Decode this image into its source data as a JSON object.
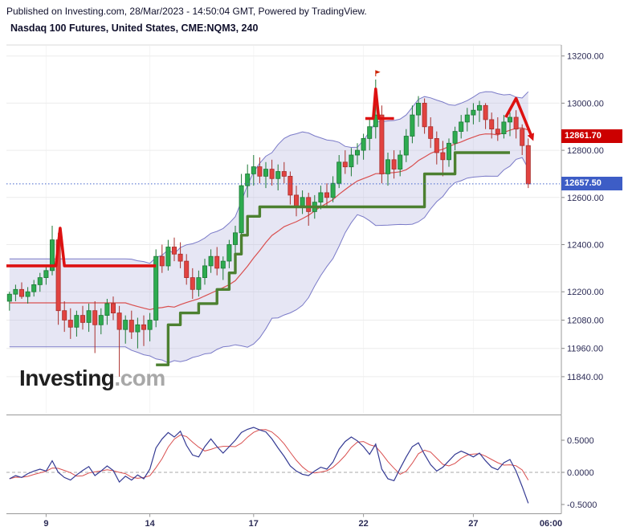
{
  "header": {
    "published_line": "Published on Investing.com, 28/Mar/2023 - 14:50:04 GMT, Powered by TradingView.",
    "title": "Nasdaq 100 Futures, United States, CME:NQM3, 240"
  },
  "watermark": {
    "brand": "Investing",
    "suffix": ".com"
  },
  "badges": {
    "indicator": {
      "label": "12861.70",
      "value": 12861.7
    },
    "current": {
      "label": "12657.50",
      "value": 12657.5
    }
  },
  "price_axis": {
    "ticks": [
      {
        "label": "13200.00",
        "value": 13200
      },
      {
        "label": "13000.00",
        "value": 13000
      },
      {
        "label": "12800.00",
        "value": 12800
      },
      {
        "label": "12600.00",
        "value": 12600
      },
      {
        "label": "12400.00",
        "value": 12400
      },
      {
        "label": "12200.00",
        "value": 12200
      },
      {
        "label": "12080.00",
        "value": 12080
      },
      {
        "label": "11960.00",
        "value": 11960
      },
      {
        "label": "11840.00",
        "value": 11840
      }
    ]
  },
  "osc_axis": {
    "ticks": [
      {
        "label": "0.5000",
        "value": 0.5
      },
      {
        "label": "0.0000",
        "value": 0.0
      },
      {
        "label": "-0.5000",
        "value": -0.5
      }
    ]
  },
  "time_axis": {
    "labels": [
      {
        "text": "9",
        "index": 6
      },
      {
        "text": "14",
        "index": 23
      },
      {
        "text": "17",
        "index": 40
      },
      {
        "text": "22",
        "index": 58
      },
      {
        "text": "27",
        "index": 76
      }
    ],
    "future_label": {
      "text": "06:00",
      "x": 686
    }
  },
  "colors": {
    "up": "#2eab50",
    "up_border": "#1d7a36",
    "down": "#e14340",
    "down_border": "#a92f2c",
    "bb_fill": "rgba(165,165,215,0.28)",
    "bb_line": "#7b7bc8",
    "ma": "#d94f4f",
    "trend_green": "#4c8030",
    "trend_red": "#dd1111",
    "current_line": "#4466cc",
    "osc_line": "#343a93",
    "osc_signal": "#d94f4f",
    "badge_red": "#cc0000",
    "badge_blue": "#3d5dc6"
  },
  "chart_data": {
    "type": "candlestick",
    "title": "Nasdaq 100 Futures, United States, CME:NQM3, 240",
    "symbol": "CME:NQM3",
    "interval_minutes": 240,
    "price_domain": [
      11700,
      13250
    ],
    "current_price": 12657.5,
    "indicator_price": 12861.7,
    "ohlc": [
      [
        12160,
        12200,
        12120,
        12190
      ],
      [
        12190,
        12230,
        12160,
        12210
      ],
      [
        12210,
        12240,
        12170,
        12180
      ],
      [
        12180,
        12220,
        12150,
        12200
      ],
      [
        12200,
        12250,
        12180,
        12230
      ],
      [
        12230,
        12280,
        12200,
        12260
      ],
      [
        12260,
        12310,
        12230,
        12290
      ],
      [
        12290,
        12480,
        12270,
        12420
      ],
      [
        12420,
        12450,
        12060,
        12120
      ],
      [
        12120,
        12160,
        12030,
        12080
      ],
      [
        12080,
        12130,
        12000,
        12050
      ],
      [
        12050,
        12120,
        12010,
        12100
      ],
      [
        12100,
        12140,
        12040,
        12070
      ],
      [
        12070,
        12150,
        12030,
        12120
      ],
      [
        12120,
        12160,
        11940,
        12060
      ],
      [
        12060,
        12130,
        12020,
        12100
      ],
      [
        12100,
        12170,
        12060,
        12150
      ],
      [
        12150,
        12180,
        12080,
        12110
      ],
      [
        12110,
        12140,
        11840,
        12040
      ],
      [
        12040,
        12100,
        11980,
        12080
      ],
      [
        12080,
        12120,
        12000,
        12030
      ],
      [
        12030,
        12090,
        11960,
        12060
      ],
      [
        12060,
        12100,
        11970,
        12040
      ],
      [
        12040,
        12110,
        11990,
        12080
      ],
      [
        12080,
        12380,
        12050,
        12350
      ],
      [
        12350,
        12400,
        12280,
        12310
      ],
      [
        12310,
        12420,
        12290,
        12390
      ],
      [
        12390,
        12430,
        12330,
        12360
      ],
      [
        12360,
        12410,
        12300,
        12330
      ],
      [
        12330,
        12360,
        12230,
        12260
      ],
      [
        12260,
        12300,
        12170,
        12210
      ],
      [
        12210,
        12290,
        12180,
        12260
      ],
      [
        12260,
        12340,
        12230,
        12310
      ],
      [
        12310,
        12380,
        12280,
        12350
      ],
      [
        12350,
        12390,
        12270,
        12300
      ],
      [
        12300,
        12350,
        12250,
        12330
      ],
      [
        12330,
        12420,
        12300,
        12400
      ],
      [
        12400,
        12480,
        12360,
        12450
      ],
      [
        12450,
        12700,
        12420,
        12650
      ],
      [
        12650,
        12740,
        12600,
        12700
      ],
      [
        12700,
        12780,
        12650,
        12730
      ],
      [
        12730,
        12770,
        12660,
        12690
      ],
      [
        12690,
        12750,
        12640,
        12720
      ],
      [
        12720,
        12760,
        12650,
        12680
      ],
      [
        12680,
        12740,
        12630,
        12710
      ],
      [
        12710,
        12750,
        12660,
        12690
      ],
      [
        12690,
        12710,
        12570,
        12610
      ],
      [
        12610,
        12650,
        12520,
        12560
      ],
      [
        12560,
        12630,
        12530,
        12600
      ],
      [
        12600,
        12620,
        12480,
        12540
      ],
      [
        12540,
        12610,
        12510,
        12580
      ],
      [
        12580,
        12650,
        12550,
        12620
      ],
      [
        12620,
        12660,
        12560,
        12600
      ],
      [
        12600,
        12690,
        12580,
        12660
      ],
      [
        12660,
        12780,
        12640,
        12750
      ],
      [
        12750,
        12800,
        12700,
        12730
      ],
      [
        12730,
        12810,
        12690,
        12780
      ],
      [
        12780,
        12830,
        12740,
        12800
      ],
      [
        12800,
        12870,
        12760,
        12850
      ],
      [
        12850,
        12930,
        12800,
        12900
      ],
      [
        12900,
        13100,
        12850,
        12950
      ],
      [
        12950,
        12990,
        12660,
        12700
      ],
      [
        12700,
        12790,
        12650,
        12760
      ],
      [
        12760,
        12800,
        12680,
        12720
      ],
      [
        12720,
        12800,
        12690,
        12780
      ],
      [
        12780,
        12890,
        12750,
        12860
      ],
      [
        12860,
        12990,
        12830,
        12950
      ],
      [
        12950,
        13030,
        12900,
        13000
      ],
      [
        13000,
        13020,
        12870,
        12900
      ],
      [
        12900,
        12940,
        12810,
        12850
      ],
      [
        12850,
        12880,
        12740,
        12790
      ],
      [
        12790,
        12840,
        12690,
        12760
      ],
      [
        12760,
        12850,
        12730,
        12830
      ],
      [
        12830,
        12900,
        12800,
        12880
      ],
      [
        12880,
        12950,
        12850,
        12920
      ],
      [
        12920,
        12980,
        12880,
        12950
      ],
      [
        12950,
        13000,
        12910,
        12970
      ],
      [
        12970,
        13010,
        12920,
        12990
      ],
      [
        12990,
        13000,
        12890,
        12930
      ],
      [
        12930,
        12960,
        12850,
        12890
      ],
      [
        12890,
        12940,
        12840,
        12870
      ],
      [
        12870,
        12950,
        12850,
        12920
      ],
      [
        12920,
        12960,
        12860,
        12940
      ],
      [
        12940,
        12970,
        12850,
        12890
      ],
      [
        12890,
        12910,
        12780,
        12820
      ],
      [
        12820,
        12850,
        12640,
        12657.5
      ]
    ],
    "bollinger": {
      "period": 20,
      "stdev_mult": 2
    },
    "trend_stops": {
      "green_steps": [
        [
          24,
          11890
        ],
        [
          26,
          12060
        ],
        [
          28,
          12110
        ],
        [
          31,
          12150
        ],
        [
          34,
          12210
        ],
        [
          36,
          12280
        ],
        [
          37,
          12360
        ],
        [
          38,
          12440
        ],
        [
          39,
          12520
        ],
        [
          41,
          12560
        ],
        [
          67,
          12560
        ],
        [
          68,
          12700
        ],
        [
          72,
          12700
        ],
        [
          73,
          12790
        ],
        [
          82,
          12790
        ]
      ],
      "red_segments": [
        [
          [
            -0.5,
            12310
          ],
          [
            7.6,
            12310
          ],
          [
            8.3,
            12470
          ],
          [
            9.0,
            12310
          ],
          [
            24.0,
            12310
          ]
        ],
        [
          [
            58.3,
            12935
          ],
          [
            59.6,
            12935
          ],
          [
            60.0,
            13060
          ],
          [
            60.5,
            12935
          ],
          [
            63.0,
            12935
          ]
        ],
        [
          [
            81.3,
            12940
          ],
          [
            83.0,
            13020
          ],
          [
            85.5,
            12861.7
          ]
        ]
      ]
    },
    "event_marker": {
      "index": 60
    },
    "oscillator": {
      "ylim": [
        -0.65,
        0.9
      ],
      "zero_line_dashed": true,
      "signal_period": 4,
      "values": [
        -0.1,
        -0.05,
        -0.08,
        -0.02,
        0.02,
        0.05,
        0.02,
        0.18,
        0.0,
        -0.08,
        -0.12,
        -0.04,
        0.03,
        0.09,
        -0.05,
        0.02,
        0.1,
        0.03,
        -0.15,
        -0.06,
        -0.12,
        -0.04,
        -0.1,
        0.05,
        0.38,
        0.52,
        0.62,
        0.55,
        0.64,
        0.42,
        0.27,
        0.24,
        0.4,
        0.52,
        0.4,
        0.3,
        0.4,
        0.5,
        0.62,
        0.67,
        0.7,
        0.66,
        0.63,
        0.52,
        0.38,
        0.25,
        0.1,
        0.02,
        -0.03,
        -0.05,
        0.02,
        0.08,
        0.05,
        0.16,
        0.36,
        0.48,
        0.55,
        0.49,
        0.4,
        0.28,
        0.44,
        0.05,
        -0.1,
        -0.13,
        0.06,
        0.24,
        0.4,
        0.46,
        0.28,
        0.12,
        0.02,
        0.08,
        0.18,
        0.28,
        0.33,
        0.29,
        0.24,
        0.3,
        0.18,
        0.08,
        0.04,
        0.15,
        0.2,
        0.02,
        -0.22,
        -0.48
      ]
    }
  }
}
